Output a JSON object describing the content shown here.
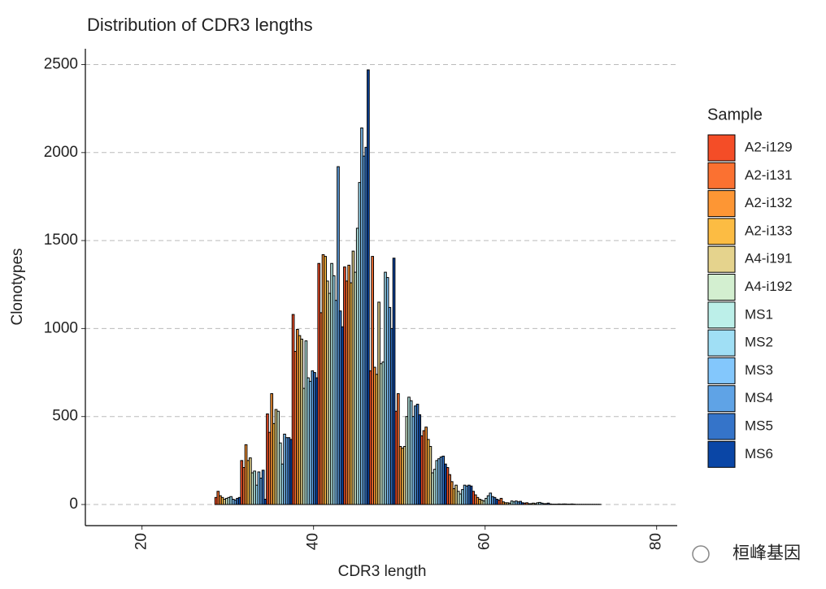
{
  "chart_data": {
    "type": "bar",
    "title": "Distribution of CDR3 lengths",
    "x_label": "CDR3 length",
    "y_label": "Clonotypes",
    "legend_title": "Sample",
    "legend_position": "right",
    "grid": true,
    "watermark": "桓峰基因",
    "x": [
      18,
      21,
      24,
      27,
      30,
      33,
      36,
      39,
      42,
      45,
      48,
      51,
      54,
      57,
      60,
      63,
      66,
      69,
      72,
      75,
      78
    ],
    "bar_span": 3,
    "xlim": [
      13.4,
      82.4
    ],
    "xticks": [
      20,
      40,
      60,
      80
    ],
    "ylim": [
      -120,
      2590
    ],
    "yticks": [
      0,
      500,
      1000,
      1500,
      2000,
      2500
    ],
    "series": [
      {
        "name": "A2-i129",
        "color": "#f44d27",
        "values": [
          0,
          0,
          0,
          0,
          40,
          250,
          515,
          1080,
          1370,
          1350,
          760,
          530,
          390,
          210,
          75,
          25,
          8,
          3,
          1,
          0,
          0
        ]
      },
      {
        "name": "A2-i131",
        "color": "#fb7131",
        "values": [
          0,
          0,
          0,
          0,
          75,
          210,
          410,
          870,
          1090,
          1270,
          1410,
          630,
          420,
          170,
          55,
          35,
          10,
          2,
          1,
          0,
          0
        ]
      },
      {
        "name": "A2-i132",
        "color": "#fd9634",
        "values": [
          0,
          0,
          0,
          0,
          50,
          340,
          630,
          995,
          1420,
          1360,
          780,
          330,
          440,
          130,
          40,
          15,
          5,
          2,
          1,
          0,
          0
        ]
      },
      {
        "name": "A2-i133",
        "color": "#fcbc43",
        "values": [
          0,
          0,
          0,
          0,
          40,
          250,
          460,
          960,
          1410,
          1260,
          740,
          320,
          370,
          90,
          30,
          10,
          5,
          2,
          1,
          0,
          0
        ]
      },
      {
        "name": "A4-i191",
        "color": "#e5d38d",
        "values": [
          0,
          0,
          0,
          0,
          30,
          265,
          540,
          940,
          1270,
          1440,
          1150,
          330,
          330,
          110,
          25,
          10,
          8,
          3,
          1,
          0,
          0
        ]
      },
      {
        "name": "A4-i192",
        "color": "#d3efd0",
        "values": [
          0,
          0,
          0,
          0,
          35,
          180,
          530,
          660,
          1200,
          1320,
          800,
          500,
          180,
          75,
          20,
          8,
          5,
          2,
          1,
          0,
          0
        ]
      },
      {
        "name": "MS1",
        "color": "#bcefe9",
        "values": [
          0,
          0,
          0,
          0,
          40,
          190,
          350,
          930,
          1370,
          1570,
          810,
          610,
          200,
          60,
          35,
          20,
          10,
          3,
          1,
          0,
          0
        ]
      },
      {
        "name": "MS2",
        "color": "#a0dff5",
        "values": [
          0,
          0,
          0,
          0,
          45,
          110,
          230,
          720,
          1300,
          1830,
          1320,
          590,
          250,
          85,
          50,
          15,
          12,
          3,
          1,
          0,
          0
        ]
      },
      {
        "name": "MS3",
        "color": "#83c7fc",
        "values": [
          0,
          0,
          0,
          0,
          30,
          185,
          400,
          700,
          1160,
          2140,
          1290,
          500,
          260,
          110,
          65,
          20,
          8,
          2,
          1,
          0,
          0
        ]
      },
      {
        "name": "MS4",
        "color": "#5fa3e6",
        "values": [
          0,
          0,
          0,
          0,
          25,
          150,
          380,
          760,
          1920,
          1980,
          1120,
          560,
          270,
          105,
          45,
          15,
          5,
          2,
          1,
          0,
          0
        ]
      },
      {
        "name": "MS5",
        "color": "#3574c9",
        "values": [
          0,
          0,
          0,
          0,
          35,
          195,
          380,
          750,
          1100,
          2030,
          1000,
          570,
          275,
          110,
          40,
          18,
          5,
          3,
          1,
          0,
          0
        ]
      },
      {
        "name": "MS6",
        "color": "#0a46a6",
        "values": [
          0,
          0,
          0,
          0,
          40,
          30,
          370,
          720,
          1010,
          2470,
          1400,
          510,
          230,
          105,
          30,
          10,
          8,
          2,
          1,
          0,
          0
        ]
      }
    ]
  }
}
